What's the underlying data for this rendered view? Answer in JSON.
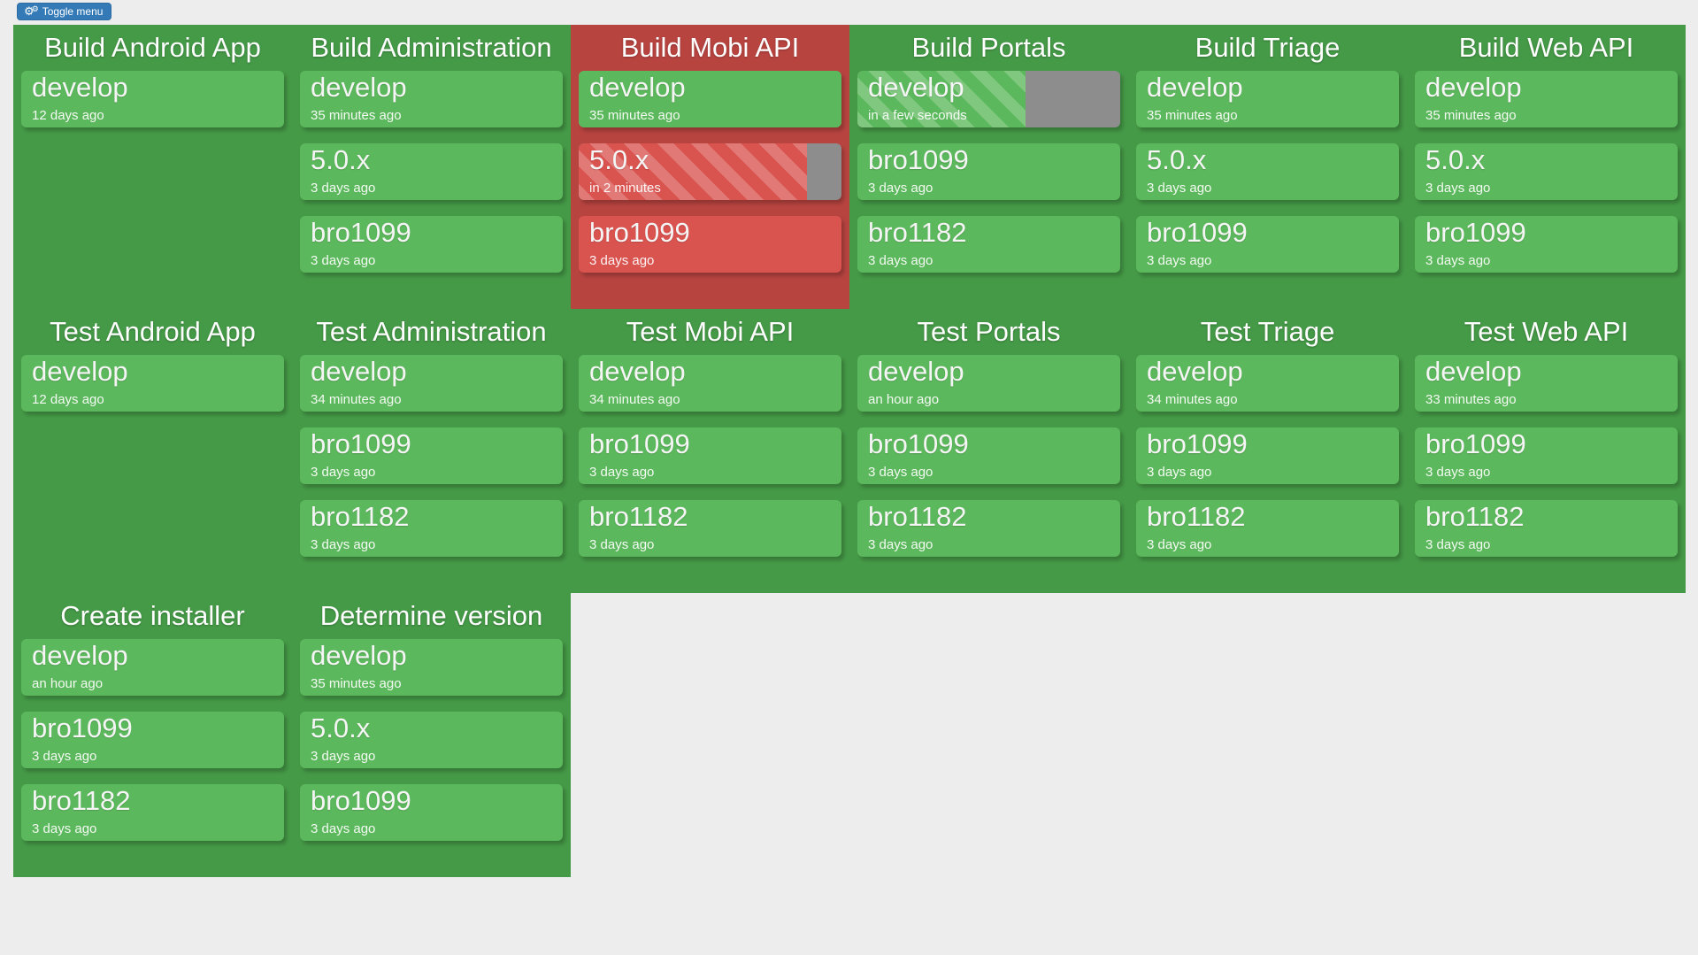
{
  "toolbar": {
    "toggle_button": {
      "label": "Toggle menu",
      "icon": "cogs-icon"
    }
  },
  "colors": {
    "page_background": "#ededed",
    "button_blue": "#337ab7",
    "success_group_background": "#459a47",
    "success_card": "#5cb85c",
    "failure_group_background": "#b84440",
    "failure_card": "#d9534f",
    "pending_gray": "#8d8d8d",
    "text": "#ffffff"
  },
  "groups": [
    {
      "title": "Build Android App",
      "status": "success",
      "builds": [
        {
          "branch": "develop",
          "time": "12 days ago",
          "status": "success",
          "building": false
        }
      ]
    },
    {
      "title": "Build Administration",
      "status": "success",
      "builds": [
        {
          "branch": "develop",
          "time": "35 minutes ago",
          "status": "success",
          "building": false
        },
        {
          "branch": "5.0.x",
          "time": "3 days ago",
          "status": "success",
          "building": false
        },
        {
          "branch": "bro1099",
          "time": "3 days ago",
          "status": "success",
          "building": false
        }
      ]
    },
    {
      "title": "Build Mobi API",
      "status": "failure",
      "builds": [
        {
          "branch": "develop",
          "time": "35 minutes ago",
          "status": "success",
          "building": false
        },
        {
          "branch": "5.0.x",
          "time": "in 2 minutes",
          "status": "failure",
          "building": true,
          "progress": 87
        },
        {
          "branch": "bro1099",
          "time": "3 days ago",
          "status": "failure",
          "building": false
        }
      ]
    },
    {
      "title": "Build Portals",
      "status": "success",
      "builds": [
        {
          "branch": "develop",
          "time": "in a few seconds",
          "status": "success",
          "building": true,
          "progress": 64
        },
        {
          "branch": "bro1099",
          "time": "3 days ago",
          "status": "success",
          "building": false
        },
        {
          "branch": "bro1182",
          "time": "3 days ago",
          "status": "success",
          "building": false
        }
      ]
    },
    {
      "title": "Build Triage",
      "status": "success",
      "builds": [
        {
          "branch": "develop",
          "time": "35 minutes ago",
          "status": "success",
          "building": false
        },
        {
          "branch": "5.0.x",
          "time": "3 days ago",
          "status": "success",
          "building": false
        },
        {
          "branch": "bro1099",
          "time": "3 days ago",
          "status": "success",
          "building": false
        }
      ]
    },
    {
      "title": "Build Web API",
      "status": "success",
      "builds": [
        {
          "branch": "develop",
          "time": "35 minutes ago",
          "status": "success",
          "building": false
        },
        {
          "branch": "5.0.x",
          "time": "3 days ago",
          "status": "success",
          "building": false
        },
        {
          "branch": "bro1099",
          "time": "3 days ago",
          "status": "success",
          "building": false
        }
      ]
    },
    {
      "title": "Test Android App",
      "status": "success",
      "builds": [
        {
          "branch": "develop",
          "time": "12 days ago",
          "status": "success",
          "building": false
        }
      ]
    },
    {
      "title": "Test Administration",
      "status": "success",
      "builds": [
        {
          "branch": "develop",
          "time": "34 minutes ago",
          "status": "success",
          "building": false
        },
        {
          "branch": "bro1099",
          "time": "3 days ago",
          "status": "success",
          "building": false
        },
        {
          "branch": "bro1182",
          "time": "3 days ago",
          "status": "success",
          "building": false
        }
      ]
    },
    {
      "title": "Test Mobi API",
      "status": "success",
      "builds": [
        {
          "branch": "develop",
          "time": "34 minutes ago",
          "status": "success",
          "building": false
        },
        {
          "branch": "bro1099",
          "time": "3 days ago",
          "status": "success",
          "building": false
        },
        {
          "branch": "bro1182",
          "time": "3 days ago",
          "status": "success",
          "building": false
        }
      ]
    },
    {
      "title": "Test Portals",
      "status": "success",
      "builds": [
        {
          "branch": "develop",
          "time": "an hour ago",
          "status": "success",
          "building": false
        },
        {
          "branch": "bro1099",
          "time": "3 days ago",
          "status": "success",
          "building": false
        },
        {
          "branch": "bro1182",
          "time": "3 days ago",
          "status": "success",
          "building": false
        }
      ]
    },
    {
      "title": "Test Triage",
      "status": "success",
      "builds": [
        {
          "branch": "develop",
          "time": "34 minutes ago",
          "status": "success",
          "building": false
        },
        {
          "branch": "bro1099",
          "time": "3 days ago",
          "status": "success",
          "building": false
        },
        {
          "branch": "bro1182",
          "time": "3 days ago",
          "status": "success",
          "building": false
        }
      ]
    },
    {
      "title": "Test Web API",
      "status": "success",
      "builds": [
        {
          "branch": "develop",
          "time": "33 minutes ago",
          "status": "success",
          "building": false
        },
        {
          "branch": "bro1099",
          "time": "3 days ago",
          "status": "success",
          "building": false
        },
        {
          "branch": "bro1182",
          "time": "3 days ago",
          "status": "success",
          "building": false
        }
      ]
    },
    {
      "title": "Create installer",
      "status": "success",
      "builds": [
        {
          "branch": "develop",
          "time": "an hour ago",
          "status": "success",
          "building": false
        },
        {
          "branch": "bro1099",
          "time": "3 days ago",
          "status": "success",
          "building": false
        },
        {
          "branch": "bro1182",
          "time": "3 days ago",
          "status": "success",
          "building": false
        }
      ]
    },
    {
      "title": "Determine version",
      "status": "success",
      "builds": [
        {
          "branch": "develop",
          "time": "35 minutes ago",
          "status": "success",
          "building": false
        },
        {
          "branch": "5.0.x",
          "time": "3 days ago",
          "status": "success",
          "building": false
        },
        {
          "branch": "bro1099",
          "time": "3 days ago",
          "status": "success",
          "building": false
        }
      ]
    }
  ]
}
